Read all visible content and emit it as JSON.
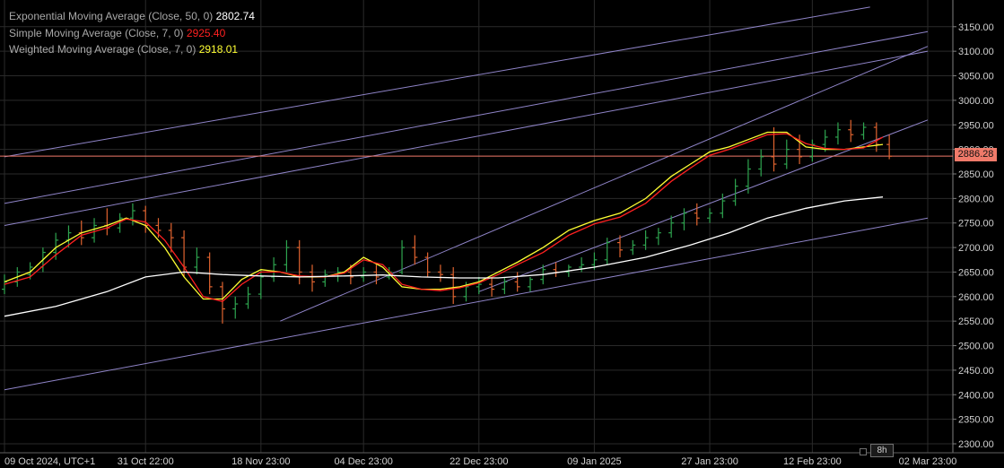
{
  "legend": [
    {
      "name": "Exponential Moving Average (Close, 50, 0)",
      "value": "2802.74",
      "color": "#ffffff"
    },
    {
      "name": "Simple Moving Average (Close, 7, 0)",
      "value": "2925.40",
      "color": "#ff2020"
    },
    {
      "name": "Weighted Moving Average (Close, 7, 0)",
      "value": "2918.01",
      "color": "#ffff33"
    }
  ],
  "timeframe": "8h",
  "last_price_label": "2886.28",
  "colors": {
    "up": "#2ea44f",
    "down": "#e0632f",
    "ema50": "#ffffff",
    "sma7": "#ff2020",
    "wma7": "#ffff33",
    "trendline": "#8f84c8",
    "last_price": "#f07a6a",
    "grid": "#2a2a2a",
    "axis_text": "#d0d0d0"
  },
  "chart_data": {
    "type": "line",
    "title": "",
    "xlabel": "",
    "ylabel": "",
    "ylim": [
      2280,
      3190
    ],
    "xlim": [
      "2024-10-09",
      "2025-03-02"
    ],
    "grid": true,
    "legend_position": "top-left",
    "x_tick_labels": [
      {
        "date": "2024-10-09",
        "label": "09 Oct 2024, UTC+1"
      },
      {
        "date": "2024-10-31",
        "label": "31 Oct 22:00"
      },
      {
        "date": "2024-11-18",
        "label": "18 Nov 23:00"
      },
      {
        "date": "2024-12-04",
        "label": "04 Dec 23:00"
      },
      {
        "date": "2024-12-22",
        "label": "22 Dec 23:00"
      },
      {
        "date": "2025-01-09",
        "label": "09 Jan 2025"
      },
      {
        "date": "2025-01-27",
        "label": "27 Jan 23:00"
      },
      {
        "date": "2025-02-12",
        "label": "12 Feb 23:00"
      },
      {
        "date": "2025-03-02",
        "label": "02 Mar 23:00"
      }
    ],
    "y_ticks": [
      2300,
      2350,
      2400,
      2450,
      2500,
      2550,
      2600,
      2650,
      2700,
      2750,
      2800,
      2850,
      2900,
      2950,
      3000,
      3050,
      3100,
      3150
    ],
    "last_price": 2886.28,
    "series": [
      {
        "name": "Weighted Moving Average (Close, 7, 0)",
        "x": [
          "2024-10-09",
          "2024-10-13",
          "2024-10-17",
          "2024-10-21",
          "2024-10-25",
          "2024-10-28",
          "2024-10-31",
          "2024-11-03",
          "2024-11-06",
          "2024-11-09",
          "2024-11-12",
          "2024-11-15",
          "2024-11-18",
          "2024-11-21",
          "2024-11-24",
          "2024-11-28",
          "2024-12-01",
          "2024-12-04",
          "2024-12-07",
          "2024-12-10",
          "2024-12-13",
          "2024-12-16",
          "2024-12-19",
          "2024-12-22",
          "2024-12-25",
          "2024-12-28",
          "2025-01-01",
          "2025-01-05",
          "2025-01-09",
          "2025-01-13",
          "2025-01-17",
          "2025-01-21",
          "2025-01-24",
          "2025-01-27",
          "2025-01-30",
          "2025-02-02",
          "2025-02-05",
          "2025-02-08",
          "2025-02-11",
          "2025-02-14",
          "2025-02-17",
          "2025-02-20",
          "2025-02-23"
        ],
        "y": [
          2630,
          2650,
          2700,
          2730,
          2745,
          2760,
          2745,
          2700,
          2640,
          2595,
          2595,
          2635,
          2655,
          2650,
          2640,
          2640,
          2650,
          2680,
          2660,
          2620,
          2615,
          2615,
          2620,
          2630,
          2650,
          2670,
          2700,
          2735,
          2755,
          2770,
          2800,
          2845,
          2870,
          2895,
          2905,
          2920,
          2935,
          2935,
          2905,
          2900,
          2900,
          2905,
          2910
        ]
      },
      {
        "name": "Simple Moving Average (Close, 7, 0)",
        "x": [
          "2024-10-09",
          "2024-10-13",
          "2024-10-17",
          "2024-10-21",
          "2024-10-25",
          "2024-10-28",
          "2024-10-31",
          "2024-11-03",
          "2024-11-06",
          "2024-11-09",
          "2024-11-12",
          "2024-11-15",
          "2024-11-18",
          "2024-11-21",
          "2024-11-24",
          "2024-11-28",
          "2024-12-01",
          "2024-12-04",
          "2024-12-07",
          "2024-12-10",
          "2024-12-13",
          "2024-12-16",
          "2024-12-19",
          "2024-12-22",
          "2024-12-25",
          "2024-12-28",
          "2025-01-01",
          "2025-01-05",
          "2025-01-09",
          "2025-01-13",
          "2025-01-17",
          "2025-01-21",
          "2025-01-24",
          "2025-01-27",
          "2025-01-30",
          "2025-02-02",
          "2025-02-05",
          "2025-02-08",
          "2025-02-11",
          "2025-02-14",
          "2025-02-17",
          "2025-02-20",
          "2025-02-23"
        ],
        "y": [
          2625,
          2640,
          2685,
          2725,
          2740,
          2758,
          2752,
          2715,
          2660,
          2600,
          2590,
          2625,
          2650,
          2650,
          2642,
          2640,
          2648,
          2675,
          2665,
          2625,
          2615,
          2612,
          2618,
          2628,
          2645,
          2665,
          2690,
          2725,
          2748,
          2762,
          2790,
          2835,
          2862,
          2888,
          2900,
          2915,
          2930,
          2932,
          2912,
          2902,
          2900,
          2903,
          2925
        ]
      },
      {
        "name": "Exponential Moving Average (Close, 50, 0)",
        "x": [
          "2024-10-09",
          "2024-10-17",
          "2024-10-25",
          "2024-10-31",
          "2024-11-06",
          "2024-11-12",
          "2024-11-18",
          "2024-11-24",
          "2024-12-01",
          "2024-12-07",
          "2024-12-13",
          "2024-12-19",
          "2024-12-25",
          "2025-01-01",
          "2025-01-09",
          "2025-01-17",
          "2025-01-24",
          "2025-01-30",
          "2025-02-05",
          "2025-02-11",
          "2025-02-17",
          "2025-02-23"
        ],
        "y": [
          2560,
          2580,
          2610,
          2640,
          2650,
          2645,
          2642,
          2640,
          2642,
          2644,
          2640,
          2638,
          2638,
          2645,
          2660,
          2680,
          2705,
          2730,
          2760,
          2780,
          2795,
          2803
        ]
      }
    ],
    "trendlines": [
      {
        "points": [
          [
            "2024-10-09",
            2885
          ],
          [
            "2025-02-21",
            3190
          ]
        ]
      },
      {
        "points": [
          [
            "2024-10-09",
            2790
          ],
          [
            "2025-03-02",
            3140
          ]
        ]
      },
      {
        "points": [
          [
            "2024-10-09",
            2745
          ],
          [
            "2025-03-02",
            3100
          ]
        ]
      },
      {
        "points": [
          [
            "2024-10-09",
            2410
          ],
          [
            "2025-03-02",
            2760
          ]
        ]
      },
      {
        "points": [
          [
            "2024-11-21",
            2550
          ],
          [
            "2025-03-02",
            3110
          ]
        ]
      },
      {
        "points": [
          [
            "2024-12-22",
            2610
          ],
          [
            "2025-03-02",
            2960
          ]
        ]
      }
    ],
    "candles": [
      {
        "date": "2024-10-09",
        "o": 2615,
        "h": 2645,
        "c": 2630,
        "l": 2605
      },
      {
        "date": "2024-10-11",
        "o": 2630,
        "h": 2660,
        "c": 2650,
        "l": 2620
      },
      {
        "date": "2024-10-13",
        "o": 2645,
        "h": 2670,
        "c": 2660,
        "l": 2635
      },
      {
        "date": "2024-10-15",
        "o": 2660,
        "h": 2700,
        "c": 2690,
        "l": 2650
      },
      {
        "date": "2024-10-17",
        "o": 2690,
        "h": 2730,
        "c": 2715,
        "l": 2675
      },
      {
        "date": "2024-10-19",
        "o": 2715,
        "h": 2745,
        "c": 2730,
        "l": 2700
      },
      {
        "date": "2024-10-21",
        "o": 2730,
        "h": 2755,
        "c": 2720,
        "l": 2705
      },
      {
        "date": "2024-10-23",
        "o": 2720,
        "h": 2760,
        "c": 2745,
        "l": 2710
      },
      {
        "date": "2024-10-25",
        "o": 2745,
        "h": 2780,
        "c": 2740,
        "l": 2725
      },
      {
        "date": "2024-10-27",
        "o": 2740,
        "h": 2770,
        "c": 2760,
        "l": 2730
      },
      {
        "date": "2024-10-29",
        "o": 2760,
        "h": 2790,
        "c": 2775,
        "l": 2745
      },
      {
        "date": "2024-10-31",
        "o": 2775,
        "h": 2785,
        "c": 2745,
        "l": 2730
      },
      {
        "date": "2024-11-02",
        "o": 2745,
        "h": 2760,
        "c": 2735,
        "l": 2720
      },
      {
        "date": "2024-11-04",
        "o": 2735,
        "h": 2750,
        "c": 2720,
        "l": 2690
      },
      {
        "date": "2024-11-06",
        "o": 2720,
        "h": 2735,
        "c": 2660,
        "l": 2640
      },
      {
        "date": "2024-11-08",
        "o": 2660,
        "h": 2700,
        "c": 2680,
        "l": 2645
      },
      {
        "date": "2024-11-10",
        "o": 2680,
        "h": 2690,
        "c": 2620,
        "l": 2605
      },
      {
        "date": "2024-11-12",
        "o": 2620,
        "h": 2630,
        "c": 2575,
        "l": 2545
      },
      {
        "date": "2024-11-14",
        "o": 2575,
        "h": 2600,
        "c": 2585,
        "l": 2555
      },
      {
        "date": "2024-11-16",
        "o": 2585,
        "h": 2620,
        "c": 2605,
        "l": 2575
      },
      {
        "date": "2024-11-18",
        "o": 2605,
        "h": 2655,
        "c": 2640,
        "l": 2595
      },
      {
        "date": "2024-11-20",
        "o": 2640,
        "h": 2680,
        "c": 2665,
        "l": 2630
      },
      {
        "date": "2024-11-22",
        "o": 2665,
        "h": 2715,
        "c": 2700,
        "l": 2650
      },
      {
        "date": "2024-11-24",
        "o": 2700,
        "h": 2715,
        "c": 2650,
        "l": 2625
      },
      {
        "date": "2024-11-26",
        "o": 2650,
        "h": 2665,
        "c": 2630,
        "l": 2610
      },
      {
        "date": "2024-11-28",
        "o": 2630,
        "h": 2655,
        "c": 2645,
        "l": 2620
      },
      {
        "date": "2024-11-30",
        "o": 2645,
        "h": 2660,
        "c": 2650,
        "l": 2630
      },
      {
        "date": "2024-12-02",
        "o": 2650,
        "h": 2665,
        "c": 2640,
        "l": 2625
      },
      {
        "date": "2024-12-04",
        "o": 2640,
        "h": 2660,
        "c": 2650,
        "l": 2630
      },
      {
        "date": "2024-12-06",
        "o": 2650,
        "h": 2665,
        "c": 2640,
        "l": 2625
      },
      {
        "date": "2024-12-08",
        "o": 2640,
        "h": 2660,
        "c": 2650,
        "l": 2635
      },
      {
        "date": "2024-12-10",
        "o": 2650,
        "h": 2715,
        "c": 2700,
        "l": 2645
      },
      {
        "date": "2024-12-12",
        "o": 2700,
        "h": 2725,
        "c": 2680,
        "l": 2665
      },
      {
        "date": "2024-12-14",
        "o": 2680,
        "h": 2690,
        "c": 2650,
        "l": 2640
      },
      {
        "date": "2024-12-16",
        "o": 2650,
        "h": 2665,
        "c": 2645,
        "l": 2630
      },
      {
        "date": "2024-12-18",
        "o": 2645,
        "h": 2660,
        "c": 2600,
        "l": 2585
      },
      {
        "date": "2024-12-20",
        "o": 2600,
        "h": 2630,
        "c": 2620,
        "l": 2590
      },
      {
        "date": "2024-12-22",
        "o": 2620,
        "h": 2640,
        "c": 2625,
        "l": 2605
      },
      {
        "date": "2024-12-24",
        "o": 2625,
        "h": 2640,
        "c": 2615,
        "l": 2600
      },
      {
        "date": "2024-12-26",
        "o": 2615,
        "h": 2640,
        "c": 2630,
        "l": 2605
      },
      {
        "date": "2024-12-28",
        "o": 2630,
        "h": 2650,
        "c": 2620,
        "l": 2610
      },
      {
        "date": "2024-12-30",
        "o": 2620,
        "h": 2640,
        "c": 2635,
        "l": 2610
      },
      {
        "date": "2025-01-01",
        "o": 2635,
        "h": 2665,
        "c": 2655,
        "l": 2625
      },
      {
        "date": "2025-01-03",
        "o": 2655,
        "h": 2670,
        "c": 2650,
        "l": 2640
      },
      {
        "date": "2025-01-05",
        "o": 2650,
        "h": 2665,
        "c": 2660,
        "l": 2640
      },
      {
        "date": "2025-01-07",
        "o": 2660,
        "h": 2680,
        "c": 2665,
        "l": 2650
      },
      {
        "date": "2025-01-09",
        "o": 2665,
        "h": 2690,
        "c": 2675,
        "l": 2655
      },
      {
        "date": "2025-01-11",
        "o": 2675,
        "h": 2720,
        "c": 2710,
        "l": 2665
      },
      {
        "date": "2025-01-13",
        "o": 2710,
        "h": 2725,
        "c": 2695,
        "l": 2680
      },
      {
        "date": "2025-01-15",
        "o": 2695,
        "h": 2715,
        "c": 2705,
        "l": 2685
      },
      {
        "date": "2025-01-17",
        "o": 2705,
        "h": 2735,
        "c": 2720,
        "l": 2695
      },
      {
        "date": "2025-01-19",
        "o": 2720,
        "h": 2740,
        "c": 2730,
        "l": 2705
      },
      {
        "date": "2025-01-21",
        "o": 2730,
        "h": 2765,
        "c": 2750,
        "l": 2720
      },
      {
        "date": "2025-01-23",
        "o": 2750,
        "h": 2780,
        "c": 2770,
        "l": 2735
      },
      {
        "date": "2025-01-25",
        "o": 2770,
        "h": 2790,
        "c": 2760,
        "l": 2745
      },
      {
        "date": "2025-01-27",
        "o": 2760,
        "h": 2780,
        "c": 2770,
        "l": 2750
      },
      {
        "date": "2025-01-29",
        "o": 2770,
        "h": 2810,
        "c": 2795,
        "l": 2760
      },
      {
        "date": "2025-01-31",
        "o": 2795,
        "h": 2840,
        "c": 2825,
        "l": 2785
      },
      {
        "date": "2025-02-02",
        "o": 2825,
        "h": 2880,
        "c": 2860,
        "l": 2810
      },
      {
        "date": "2025-02-04",
        "o": 2860,
        "h": 2900,
        "c": 2885,
        "l": 2845
      },
      {
        "date": "2025-02-06",
        "o": 2885,
        "h": 2945,
        "c": 2870,
        "l": 2855
      },
      {
        "date": "2025-02-08",
        "o": 2870,
        "h": 2920,
        "c": 2900,
        "l": 2860
      },
      {
        "date": "2025-02-10",
        "o": 2900,
        "h": 2930,
        "c": 2885,
        "l": 2870
      },
      {
        "date": "2025-02-12",
        "o": 2885,
        "h": 2920,
        "c": 2910,
        "l": 2875
      },
      {
        "date": "2025-02-14",
        "o": 2910,
        "h": 2940,
        "c": 2925,
        "l": 2895
      },
      {
        "date": "2025-02-16",
        "o": 2925,
        "h": 2955,
        "c": 2940,
        "l": 2910
      },
      {
        "date": "2025-02-18",
        "o": 2940,
        "h": 2960,
        "c": 2930,
        "l": 2915
      },
      {
        "date": "2025-02-20",
        "o": 2930,
        "h": 2955,
        "c": 2945,
        "l": 2920
      },
      {
        "date": "2025-02-22",
        "o": 2945,
        "h": 2955,
        "c": 2910,
        "l": 2895
      },
      {
        "date": "2025-02-24",
        "o": 2910,
        "h": 2930,
        "c": 2886,
        "l": 2880
      }
    ]
  }
}
